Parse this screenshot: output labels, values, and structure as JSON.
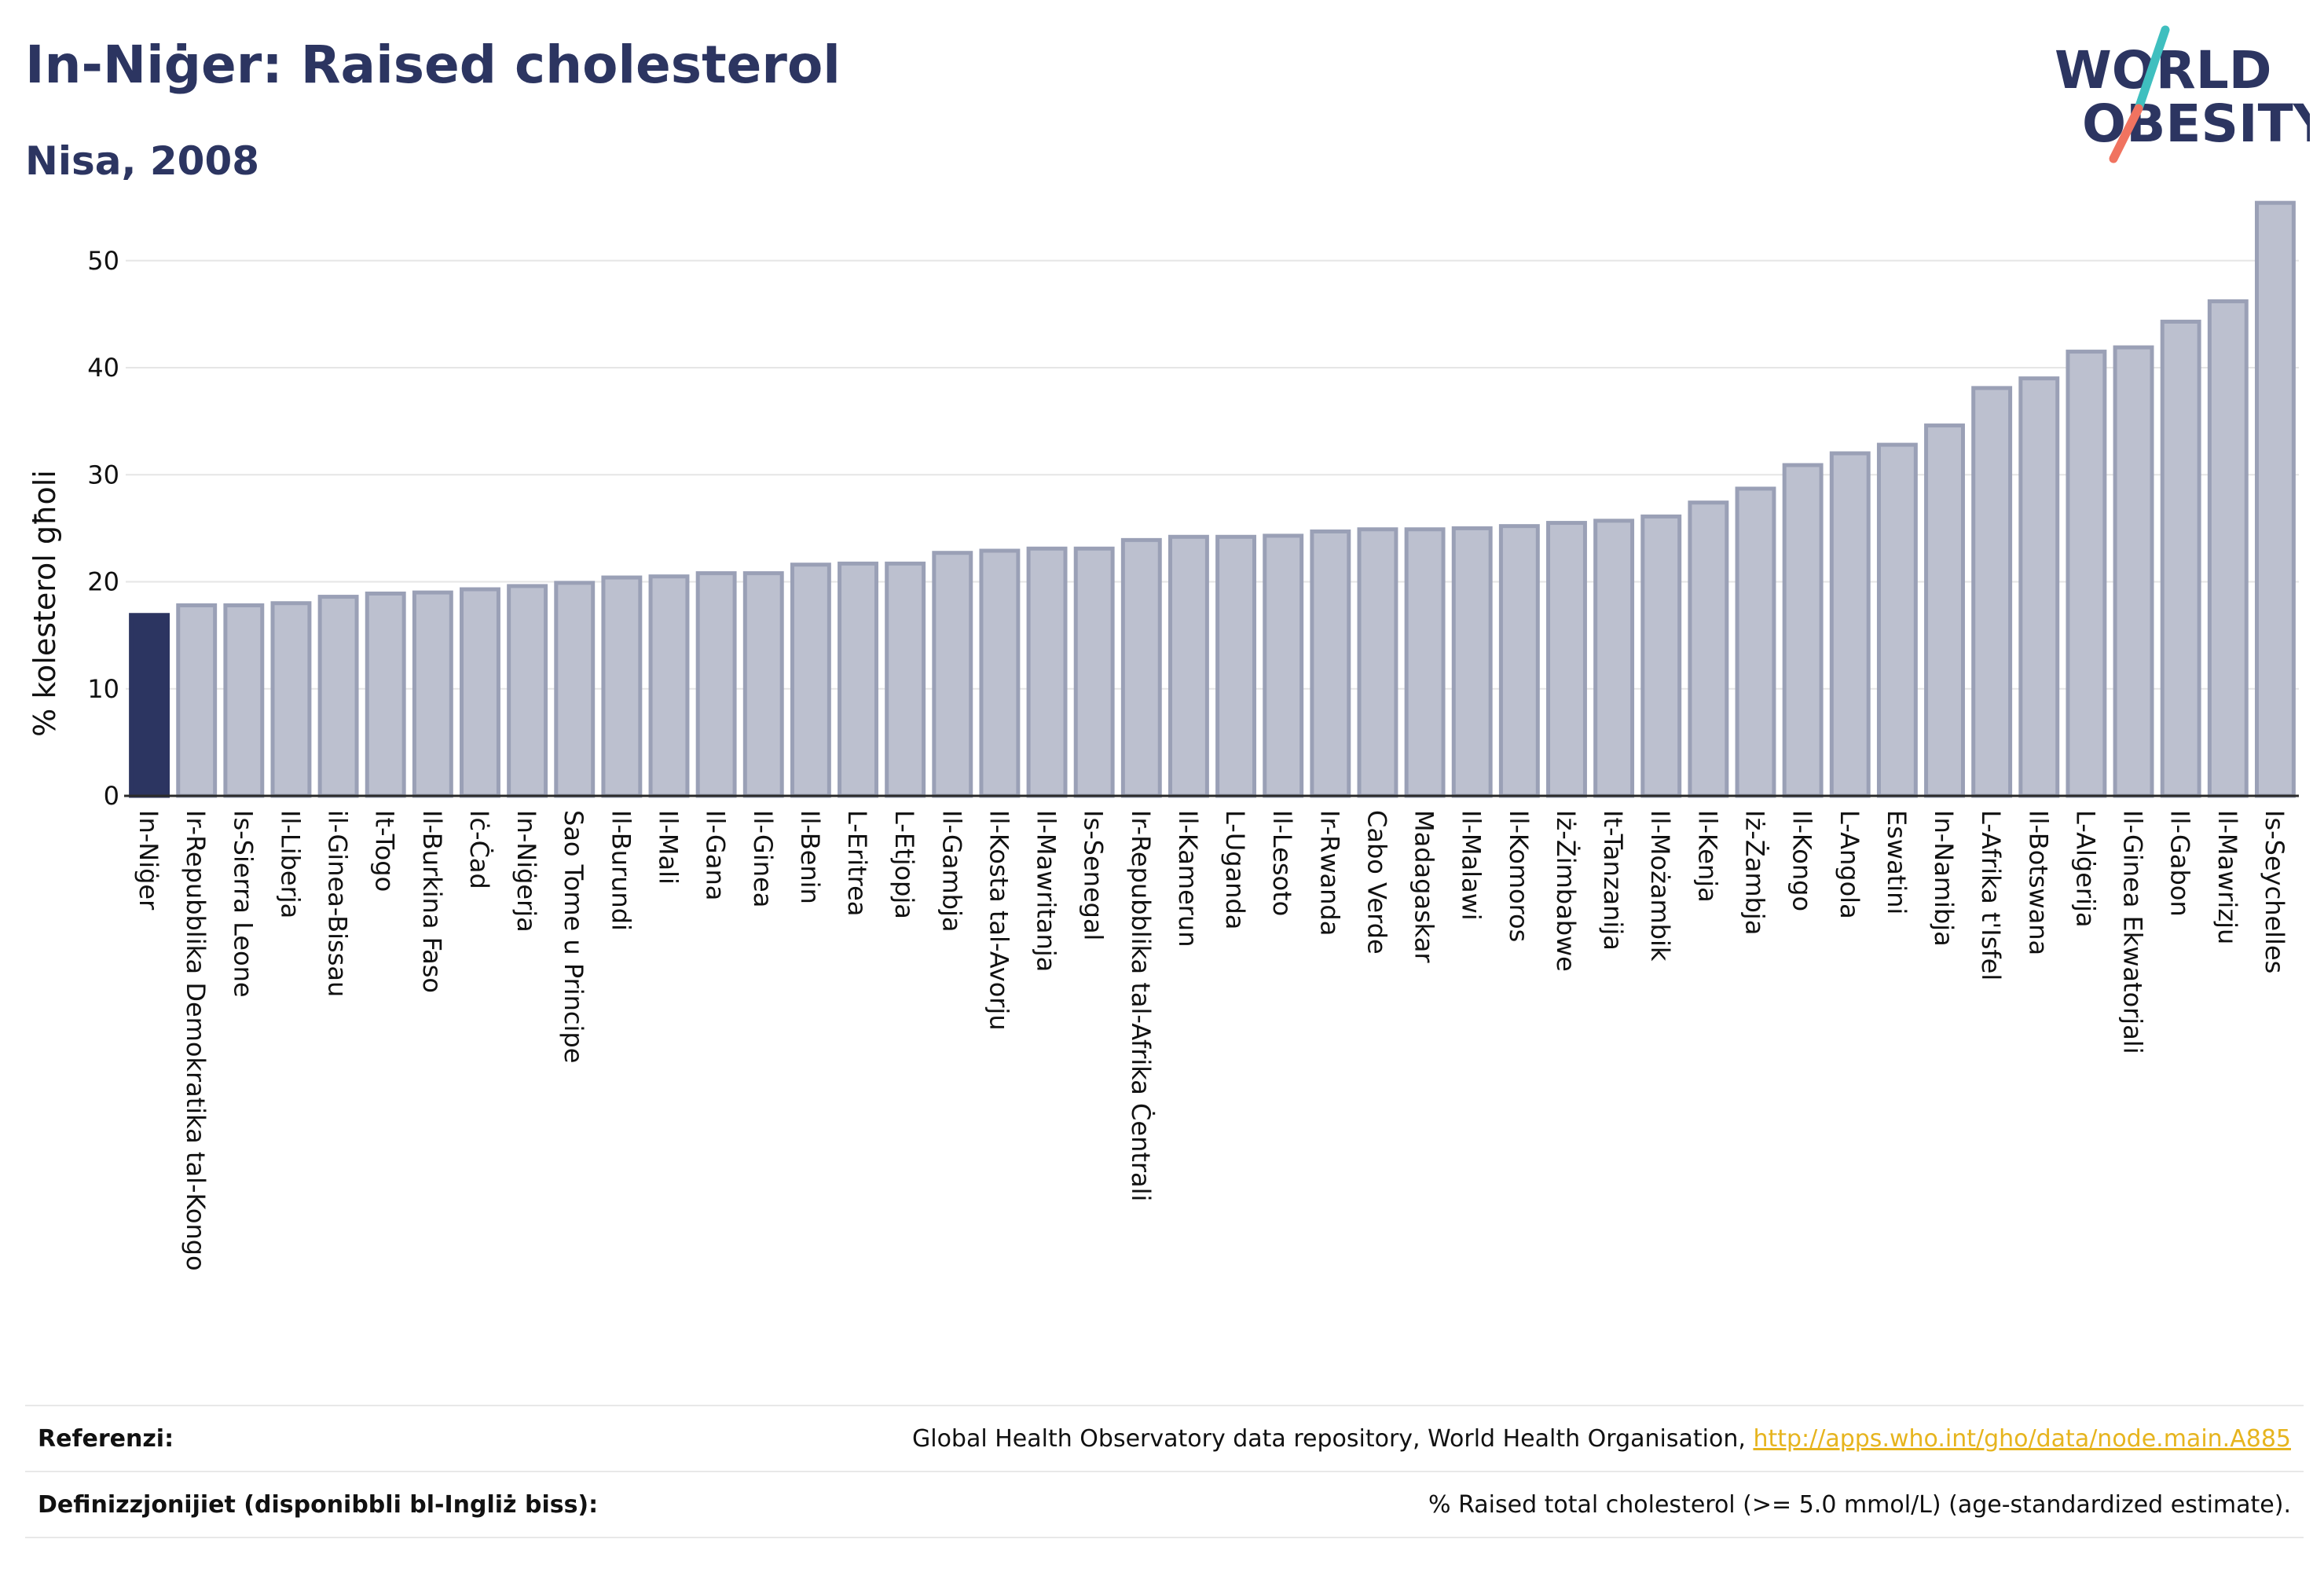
{
  "header": {
    "title": "In-Niġer: Raised cholesterol",
    "subtitle": "Nisa, 2008"
  },
  "logo": {
    "line1": "WORLD",
    "line2": "OBESITY"
  },
  "colors": {
    "highlight": "#2c3561",
    "bar_fill": "#bcc0cf",
    "bar_stroke": "#9aa0b6",
    "grid": "#e6e6e6",
    "logo_teal": "#3fbfbf",
    "logo_coral": "#f07360"
  },
  "chart_data": {
    "type": "bar",
    "ylabel": "% kolesterol għoli",
    "ylim": [
      0,
      56
    ],
    "yticks": [
      0,
      10,
      20,
      30,
      40,
      50
    ],
    "grid": true,
    "highlight_category": "In-Niġer",
    "categories": [
      "In-Niġer",
      "Ir-Repubblika Demokratika tal-Kongo",
      "Is-Sierra Leone",
      "Il-Liberja",
      "il-Ginea-Bissau",
      "It-Togo",
      "Il-Burkina Faso",
      "Iċ-Ċad",
      "In-Niġerja",
      "Sao Tome u Principe",
      "Il-Burundi",
      "Il-Mali",
      "Il-Gana",
      "Il-Ginea",
      "Il-Benin",
      "L-Eritrea",
      "L-Etjopja",
      "Il-Gambja",
      "Il-Kosta tal-Avorju",
      "Il-Mawritanja",
      "Is-Senegal",
      "Ir-Repubblika tal-Afrika Ċentrali",
      "Il-Kamerun",
      "L-Uganda",
      "Il-Lesoto",
      "Ir-Rwanda",
      "Cabo Verde",
      "Madagaskar",
      "Il-Malawi",
      "Il-Komoros",
      "Iż-Żimbabwe",
      "It-Tanzanija",
      "Il-Możambik",
      "Il-Kenja",
      "Iż-Żambja",
      "Il-Kongo",
      "L-Angola",
      "Eswatini",
      "In-Namibja",
      "L-Afrika t'Isfel",
      "Il-Botswana",
      "L-Alġerija",
      "Il-Ginea Ekwatorjali",
      "Il-Gabon",
      "Il-Mawrizju",
      "Is-Seychelles"
    ],
    "values": [
      16.9,
      17.8,
      17.8,
      18.0,
      18.6,
      18.9,
      19.0,
      19.3,
      19.6,
      19.9,
      20.4,
      20.5,
      20.8,
      20.8,
      21.6,
      21.7,
      21.7,
      22.7,
      22.9,
      23.1,
      23.1,
      23.9,
      24.2,
      24.2,
      24.3,
      24.7,
      24.9,
      24.9,
      25.0,
      25.2,
      25.5,
      25.7,
      26.1,
      27.4,
      28.7,
      30.9,
      32.0,
      32.8,
      34.6,
      38.1,
      39.0,
      41.5,
      41.9,
      44.3,
      46.2,
      55.4
    ]
  },
  "footer": {
    "sources_label": "Referenzi:",
    "sources_text": "Global Health Observatory data repository, World Health Organisation,",
    "sources_link": "http://apps.who.int/gho/data/node.main.A885",
    "definitions_label": "Definizzjonijiet (disponibbli bl-Ingliż biss):",
    "definitions_text": "% Raised total cholesterol (>= 5.0 mmol/L) (age-standardized estimate)."
  }
}
